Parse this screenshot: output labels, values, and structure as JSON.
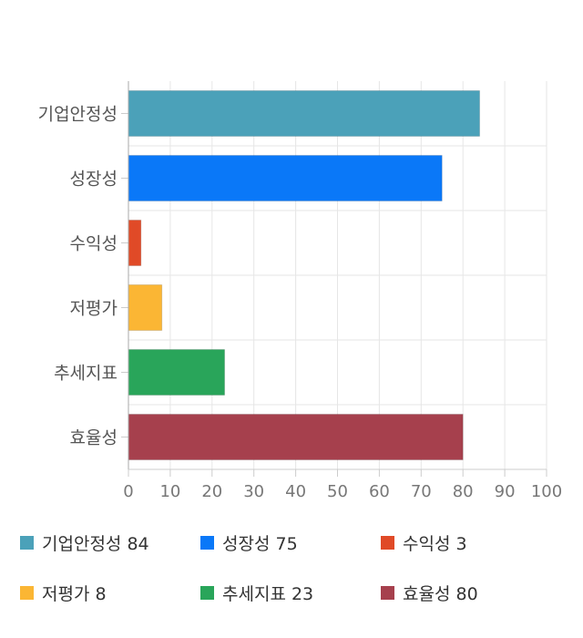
{
  "chart_data": {
    "type": "bar",
    "orientation": "horizontal",
    "categories": [
      "기업안정성",
      "성장성",
      "수익성",
      "저평가",
      "추세지표",
      "효율성"
    ],
    "values": [
      84,
      75,
      3,
      8,
      23,
      80
    ],
    "colors": [
      "#4ba1b9",
      "#0a78f8",
      "#e04a27",
      "#fbb634",
      "#29a55a",
      "#a6404d"
    ],
    "xlim": [
      0,
      100
    ],
    "xticks": [
      "0",
      "10",
      "20",
      "30",
      "40",
      "50",
      "60",
      "70",
      "80",
      "90",
      "100"
    ],
    "grid": true,
    "legend_position": "bottom",
    "legend": [
      {
        "label": "기업안정성",
        "value": "84",
        "color": "#4ba1b9"
      },
      {
        "label": "성장성",
        "value": "75",
        "color": "#0a78f8"
      },
      {
        "label": "수익성",
        "value": "3",
        "color": "#e04a27"
      },
      {
        "label": "저평가",
        "value": "8",
        "color": "#fbb634"
      },
      {
        "label": "추세지표",
        "value": "23",
        "color": "#29a55a"
      },
      {
        "label": "효율성",
        "value": "80",
        "color": "#a6404d"
      }
    ]
  }
}
